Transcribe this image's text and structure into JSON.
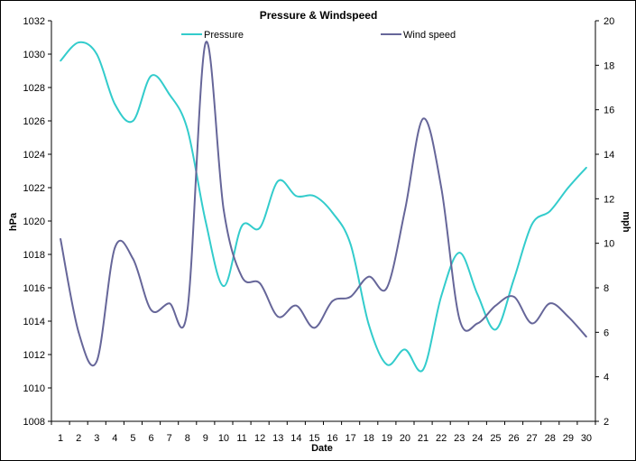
{
  "chart_data": {
    "type": "line",
    "title": "Pressure & Windspeed",
    "xlabel": "Date",
    "ylabel_left": "hPa",
    "ylabel_right": "mph",
    "x": [
      1,
      2,
      3,
      4,
      5,
      6,
      7,
      8,
      9,
      10,
      11,
      12,
      13,
      14,
      15,
      16,
      17,
      18,
      19,
      20,
      21,
      22,
      23,
      24,
      25,
      26,
      27,
      28,
      29,
      30
    ],
    "ylim_left": [
      1008,
      1032
    ],
    "ylim_right": [
      2,
      20
    ],
    "yticks_left": [
      1008,
      1010,
      1012,
      1014,
      1016,
      1018,
      1020,
      1022,
      1024,
      1026,
      1028,
      1030,
      1032
    ],
    "yticks_right": [
      2,
      4,
      6,
      8,
      10,
      12,
      14,
      16,
      18,
      20
    ],
    "grid": false,
    "legend_position": "top",
    "series": [
      {
        "name": "Pressure",
        "axis": "left",
        "color": "#33cccc",
        "values": [
          1029.6,
          1030.7,
          1030.0,
          1027.0,
          1026.0,
          1028.7,
          1027.6,
          1025.5,
          1020.0,
          1016.1,
          1019.7,
          1019.6,
          1022.4,
          1021.5,
          1021.5,
          1020.5,
          1018.6,
          1013.8,
          1011.4,
          1012.3,
          1011.1,
          1015.5,
          1018.1,
          1015.6,
          1013.5,
          1016.5,
          1019.8,
          1020.6,
          1022.0,
          1023.2
        ]
      },
      {
        "name": "Wind speed",
        "axis": "right",
        "color": "#666699",
        "values": [
          10.2,
          6.0,
          4.7,
          9.8,
          9.3,
          7.0,
          7.3,
          7.0,
          19.0,
          11.5,
          8.5,
          8.2,
          6.7,
          7.2,
          6.2,
          7.4,
          7.6,
          8.5,
          8.0,
          11.5,
          15.6,
          12.5,
          6.6,
          6.4,
          7.2,
          7.6,
          6.4,
          7.3,
          6.7,
          5.8
        ]
      }
    ]
  }
}
